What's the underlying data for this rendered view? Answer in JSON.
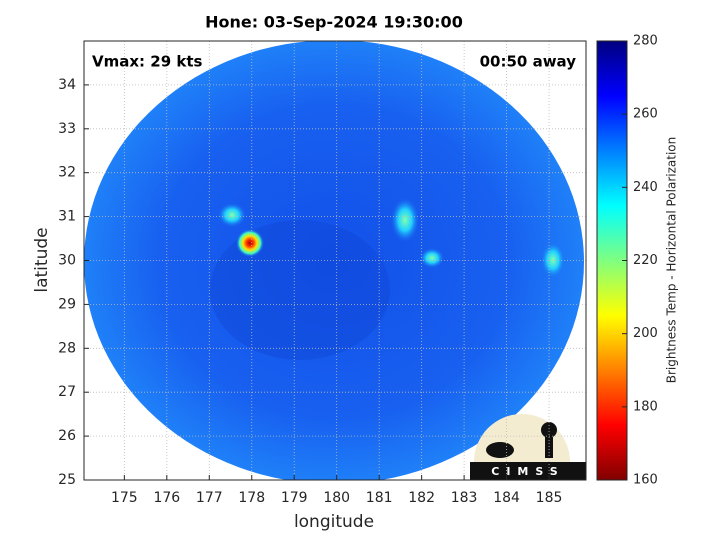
{
  "chart_data": {
    "type": "image-map",
    "title": "Hone: 03-Sep-2024 19:30:00",
    "xlabel": "longitude",
    "ylabel": "latitude",
    "xlim": [
      174.05,
      185.87
    ],
    "ylim": [
      25,
      35
    ],
    "xticks": [
      175,
      176,
      177,
      178,
      179,
      180,
      181,
      182,
      183,
      184,
      185
    ],
    "yticks": [
      25,
      26,
      27,
      28,
      29,
      30,
      31,
      32,
      33,
      34
    ],
    "grid": true,
    "annotations": [
      "Vmax: 29 kts",
      "00:50 away"
    ],
    "colorbar": {
      "label": "Brightness Temp - Horizontal Polarization",
      "lim": [
        160,
        280
      ],
      "ticks": [
        160,
        180,
        200,
        220,
        240,
        260,
        280
      ],
      "colormap": "jet-reversed"
    },
    "logo": "CIMSS"
  }
}
